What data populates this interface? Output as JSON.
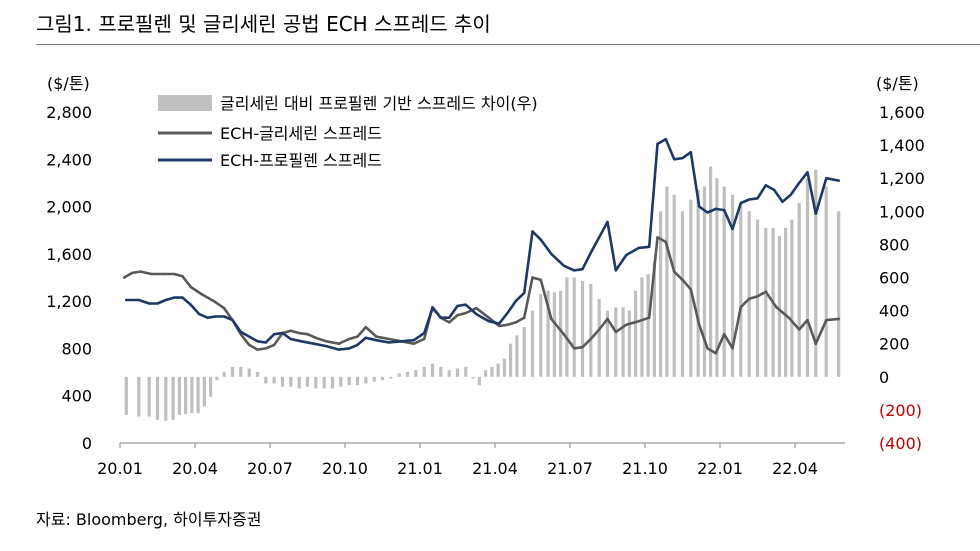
{
  "header": {
    "title": "그림1. 프로필렌 및 글리세린 공법 ECH 스프레드 추이"
  },
  "footer": {
    "source": "자료: Bloomberg, 하이투자증권"
  },
  "colors": {
    "bar": "#bfbfbf",
    "ech_gly": "#595959",
    "ech_pro": "#1f3864",
    "negative": "#c00000"
  },
  "chart_data": {
    "type": "bar-line combo",
    "title": "",
    "left_axis": {
      "label": "($/톤)",
      "min": 0,
      "max": 2800,
      "ticks": [
        "0",
        "400",
        "800",
        "1,200",
        "1,600",
        "2,000",
        "2,400",
        "2,800"
      ]
    },
    "right_axis": {
      "label": "($/톤)",
      "min": -400,
      "max": 1600,
      "ticks": [
        "(400)",
        "(200)",
        "0",
        "200",
        "400",
        "600",
        "800",
        "1,000",
        "1,200",
        "1,400",
        "1,600"
      ]
    },
    "x_ticks": [
      "20.01",
      "20.04",
      "20.07",
      "20.10",
      "21.01",
      "21.04",
      "21.07",
      "21.10",
      "22.01",
      "22.04"
    ],
    "legend": {
      "position": "top-left",
      "items": [
        {
          "name": "글리세린 대비 프로필렌 기반 스프레드 차이(우)",
          "kind": "bar"
        },
        {
          "name": "ECH-글리세린 스프레드",
          "kind": "line"
        },
        {
          "name": "ECH-프로필렌 스프레드",
          "kind": "line"
        }
      ]
    },
    "x_start": "2020-01",
    "x_end": "2022-05",
    "series": [
      {
        "name": "글리세린 대비 프로필렌 기반 스프레드 차이(우)",
        "axis": "right",
        "type": "bar",
        "points": [
          [
            "2020-01",
            -230
          ],
          [
            "2020-01",
            -240
          ],
          [
            "2020-02",
            -240
          ],
          [
            "2020-02",
            -260
          ],
          [
            "2020-02",
            -265
          ],
          [
            "2020-03",
            -260
          ],
          [
            "2020-03",
            -230
          ],
          [
            "2020-03",
            -225
          ],
          [
            "2020-03",
            -220
          ],
          [
            "2020-04",
            -220
          ],
          [
            "2020-04",
            -180
          ],
          [
            "2020-04",
            -120
          ],
          [
            "2020-04",
            -20
          ],
          [
            "2020-05",
            30
          ],
          [
            "2020-05",
            60
          ],
          [
            "2020-05",
            60
          ],
          [
            "2020-06",
            50
          ],
          [
            "2020-06",
            30
          ],
          [
            "2020-06",
            -40
          ],
          [
            "2020-07",
            -40
          ],
          [
            "2020-07",
            -60
          ],
          [
            "2020-07",
            -60
          ],
          [
            "2020-08",
            -70
          ],
          [
            "2020-08",
            -60
          ],
          [
            "2020-08",
            -70
          ],
          [
            "2020-09",
            -70
          ],
          [
            "2020-09",
            -70
          ],
          [
            "2020-09",
            -60
          ],
          [
            "2020-10",
            -50
          ],
          [
            "2020-10",
            -50
          ],
          [
            "2020-10",
            -40
          ],
          [
            "2020-11",
            -30
          ],
          [
            "2020-11",
            -20
          ],
          [
            "2020-11",
            -10
          ],
          [
            "2020-12",
            20
          ],
          [
            "2020-12",
            30
          ],
          [
            "2020-12",
            40
          ],
          [
            "2021-01",
            60
          ],
          [
            "2021-01",
            80
          ],
          [
            "2021-01",
            60
          ],
          [
            "2021-02",
            40
          ],
          [
            "2021-02",
            50
          ],
          [
            "2021-02",
            60
          ],
          [
            "2021-03",
            -10
          ],
          [
            "2021-03",
            -50
          ],
          [
            "2021-03",
            40
          ],
          [
            "2021-03",
            60
          ],
          [
            "2021-04",
            80
          ],
          [
            "2021-04",
            110
          ],
          [
            "2021-04",
            200
          ],
          [
            "2021-04",
            250
          ],
          [
            "2021-05",
            300
          ],
          [
            "2021-05",
            400
          ],
          [
            "2021-05",
            500
          ],
          [
            "2021-06",
            520
          ],
          [
            "2021-06",
            510
          ],
          [
            "2021-06",
            520
          ],
          [
            "2021-06",
            600
          ],
          [
            "2021-07",
            600
          ],
          [
            "2021-07",
            580
          ],
          [
            "2021-07",
            560
          ],
          [
            "2021-08",
            470
          ],
          [
            "2021-08",
            400
          ],
          [
            "2021-08",
            420
          ],
          [
            "2021-09",
            420
          ],
          [
            "2021-09",
            400
          ],
          [
            "2021-09",
            520
          ],
          [
            "2021-09",
            600
          ],
          [
            "2021-10",
            620
          ],
          [
            "2021-10",
            700
          ],
          [
            "2021-10",
            1000
          ],
          [
            "2021-10",
            1150
          ],
          [
            "2021-11",
            1100
          ],
          [
            "2021-11",
            1000
          ],
          [
            "2021-11",
            1070
          ],
          [
            "2021-12",
            1130
          ],
          [
            "2021-12",
            1150
          ],
          [
            "2021-12",
            1270
          ],
          [
            "2021-12",
            1200
          ],
          [
            "2022-01",
            1150
          ],
          [
            "2022-01",
            1100
          ],
          [
            "2022-01",
            1050
          ],
          [
            "2022-02",
            1000
          ],
          [
            "2022-02",
            950
          ],
          [
            "2022-02",
            900
          ],
          [
            "2022-03",
            900
          ],
          [
            "2022-03",
            850
          ],
          [
            "2022-03",
            900
          ],
          [
            "2022-03",
            950
          ],
          [
            "2022-04",
            1050
          ],
          [
            "2022-04",
            1200
          ],
          [
            "2022-04",
            1250
          ],
          [
            "2022-05",
            1150
          ],
          [
            "2022-05",
            1000
          ]
        ]
      },
      {
        "name": "ECH-글리세린 스프레드",
        "axis": "left",
        "type": "line",
        "points": [
          [
            "2020-01",
            1400
          ],
          [
            "2020-01",
            1440
          ],
          [
            "2020-01",
            1450
          ],
          [
            "2020-02",
            1430
          ],
          [
            "2020-02",
            1430
          ],
          [
            "2020-03",
            1430
          ],
          [
            "2020-03",
            1410
          ],
          [
            "2020-03",
            1320
          ],
          [
            "2020-04",
            1260
          ],
          [
            "2020-04",
            1200
          ],
          [
            "2020-05",
            1140
          ],
          [
            "2020-05",
            1040
          ],
          [
            "2020-05",
            920
          ],
          [
            "2020-06",
            830
          ],
          [
            "2020-06",
            790
          ],
          [
            "2020-06",
            800
          ],
          [
            "2020-07",
            830
          ],
          [
            "2020-07",
            930
          ],
          [
            "2020-07",
            950
          ],
          [
            "2020-08",
            930
          ],
          [
            "2020-08",
            920
          ],
          [
            "2020-08",
            890
          ],
          [
            "2020-09",
            860
          ],
          [
            "2020-09",
            840
          ],
          [
            "2020-10",
            880
          ],
          [
            "2020-10",
            900
          ],
          [
            "2020-10",
            980
          ],
          [
            "2020-11",
            900
          ],
          [
            "2020-11",
            880
          ],
          [
            "2020-12",
            860
          ],
          [
            "2020-12",
            840
          ],
          [
            "2021-01",
            880
          ],
          [
            "2021-01",
            1150
          ],
          [
            "2021-01",
            1060
          ],
          [
            "2021-02",
            1020
          ],
          [
            "2021-02",
            1080
          ],
          [
            "2021-02",
            1100
          ],
          [
            "2021-03",
            1140
          ],
          [
            "2021-03",
            1060
          ],
          [
            "2021-04",
            990
          ],
          [
            "2021-04",
            1000
          ],
          [
            "2021-04",
            1020
          ],
          [
            "2021-05",
            1060
          ],
          [
            "2021-05",
            1400
          ],
          [
            "2021-05",
            1380
          ],
          [
            "2021-06",
            1050
          ],
          [
            "2021-06",
            920
          ],
          [
            "2021-07",
            800
          ],
          [
            "2021-07",
            810
          ],
          [
            "2021-07",
            880
          ],
          [
            "2021-08",
            960
          ],
          [
            "2021-08",
            1050
          ],
          [
            "2021-08",
            940
          ],
          [
            "2021-09",
            1000
          ],
          [
            "2021-09",
            1030
          ],
          [
            "2021-10",
            1060
          ],
          [
            "2021-10",
            1740
          ],
          [
            "2021-10",
            1700
          ],
          [
            "2021-11",
            1450
          ],
          [
            "2021-11",
            1380
          ],
          [
            "2021-11",
            1300
          ],
          [
            "2021-12",
            1000
          ],
          [
            "2021-12",
            800
          ],
          [
            "2021-12",
            760
          ],
          [
            "2022-01",
            920
          ],
          [
            "2022-01",
            800
          ],
          [
            "2022-01",
            1150
          ],
          [
            "2022-02",
            1220
          ],
          [
            "2022-02",
            1240
          ],
          [
            "2022-02",
            1280
          ],
          [
            "2022-03",
            1150
          ],
          [
            "2022-03",
            1060
          ],
          [
            "2022-04",
            960
          ],
          [
            "2022-04",
            1040
          ],
          [
            "2022-04",
            840
          ],
          [
            "2022-05",
            1040
          ],
          [
            "2022-05",
            1050
          ]
        ]
      },
      {
        "name": "ECH-프로필렌 스프레드",
        "axis": "left",
        "type": "line",
        "points": [
          [
            "2020-01",
            1210
          ],
          [
            "2020-01",
            1210
          ],
          [
            "2020-02",
            1180
          ],
          [
            "2020-02",
            1180
          ],
          [
            "2020-02",
            1210
          ],
          [
            "2020-03",
            1230
          ],
          [
            "2020-03",
            1230
          ],
          [
            "2020-03",
            1170
          ],
          [
            "2020-04",
            1090
          ],
          [
            "2020-04",
            1060
          ],
          [
            "2020-04",
            1070
          ],
          [
            "2020-05",
            1070
          ],
          [
            "2020-05",
            1040
          ],
          [
            "2020-05",
            940
          ],
          [
            "2020-06",
            900
          ],
          [
            "2020-06",
            860
          ],
          [
            "2020-06",
            850
          ],
          [
            "2020-07",
            920
          ],
          [
            "2020-07",
            930
          ],
          [
            "2020-07",
            880
          ],
          [
            "2020-08",
            860
          ],
          [
            "2020-08",
            840
          ],
          [
            "2020-09",
            820
          ],
          [
            "2020-09",
            790
          ],
          [
            "2020-10",
            800
          ],
          [
            "2020-10",
            830
          ],
          [
            "2020-10",
            890
          ],
          [
            "2020-11",
            870
          ],
          [
            "2020-11",
            850
          ],
          [
            "2020-12",
            860
          ],
          [
            "2020-12",
            870
          ],
          [
            "2021-01",
            930
          ],
          [
            "2021-01",
            1140
          ],
          [
            "2021-01",
            1060
          ],
          [
            "2021-02",
            1060
          ],
          [
            "2021-02",
            1160
          ],
          [
            "2021-02",
            1170
          ],
          [
            "2021-03",
            1090
          ],
          [
            "2021-03",
            1030
          ],
          [
            "2021-04",
            1010
          ],
          [
            "2021-04",
            1100
          ],
          [
            "2021-04",
            1200
          ],
          [
            "2021-05",
            1270
          ],
          [
            "2021-05",
            1790
          ],
          [
            "2021-05",
            1720
          ],
          [
            "2021-06",
            1600
          ],
          [
            "2021-06",
            1500
          ],
          [
            "2021-07",
            1460
          ],
          [
            "2021-07",
            1470
          ],
          [
            "2021-07",
            1610
          ],
          [
            "2021-08",
            1740
          ],
          [
            "2021-08",
            1870
          ],
          [
            "2021-08",
            1460
          ],
          [
            "2021-09",
            1590
          ],
          [
            "2021-09",
            1650
          ],
          [
            "2021-10",
            1660
          ],
          [
            "2021-10",
            2530
          ],
          [
            "2021-10",
            2570
          ],
          [
            "2021-11",
            2400
          ],
          [
            "2021-11",
            2410
          ],
          [
            "2021-11",
            2460
          ],
          [
            "2021-12",
            2000
          ],
          [
            "2021-12",
            1950
          ],
          [
            "2021-12",
            1980
          ],
          [
            "2022-01",
            1970
          ],
          [
            "2022-01",
            1810
          ],
          [
            "2022-01",
            2030
          ],
          [
            "2022-02",
            2060
          ],
          [
            "2022-02",
            2070
          ],
          [
            "2022-02",
            2180
          ],
          [
            "2022-03",
            2140
          ],
          [
            "2022-03",
            2040
          ],
          [
            "2022-03",
            2100
          ],
          [
            "2022-04",
            2200
          ],
          [
            "2022-04",
            2290
          ],
          [
            "2022-04",
            1940
          ],
          [
            "2022-05",
            2240
          ],
          [
            "2022-05",
            2220
          ]
        ]
      }
    ]
  }
}
